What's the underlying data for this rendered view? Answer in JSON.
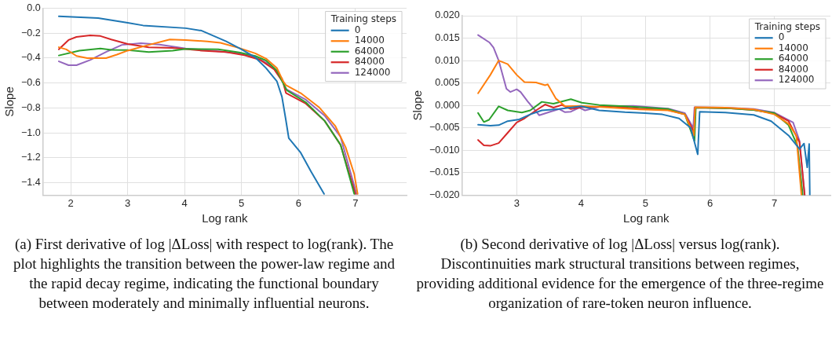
{
  "chart_data": [
    {
      "type": "line",
      "xlabel": "Log rank",
      "ylabel": "Slope",
      "legend_title": "Training steps",
      "legend": "top right",
      "grid": true,
      "xlim": [
        1.51,
        7.9
      ],
      "ylim": [
        -1.5,
        0
      ],
      "xticks": [
        2,
        3,
        4,
        5,
        6,
        7
      ],
      "yticks": [
        {
          "value": 0,
          "label": "0.0"
        },
        {
          "value": -0.2,
          "label": "−0.2"
        },
        {
          "value": -0.4,
          "label": "−0.4"
        },
        {
          "value": -0.6,
          "label": "−0.6"
        },
        {
          "value": -0.8,
          "label": "−0.8"
        },
        {
          "value": -1.0,
          "label": "−1.0"
        },
        {
          "value": -1.2,
          "label": "−1.2"
        },
        {
          "value": -1.4,
          "label": "−1.4"
        }
      ],
      "series": [
        {
          "name": "0",
          "color": "#1f77b4",
          "x": [
            1.79,
            2.48,
            3.0,
            3.27,
            4.02,
            4.3,
            4.73,
            5.0,
            5.24,
            5.43,
            5.62,
            5.71,
            5.78,
            5.83,
            6.04,
            6.22,
            6.45
          ],
          "values": [
            -0.064,
            -0.079,
            -0.117,
            -0.138,
            -0.16,
            -0.18,
            -0.266,
            -0.33,
            -0.394,
            -0.48,
            -0.585,
            -0.71,
            -0.9,
            -1.043,
            -1.16,
            -1.31,
            -1.49
          ]
        },
        {
          "name": "14000",
          "color": "#ff7f0e",
          "x": [
            1.79,
            1.92,
            2.1,
            2.29,
            2.62,
            2.81,
            3.0,
            3.37,
            3.74,
            4.02,
            4.4,
            4.63,
            4.96,
            5.24,
            5.43,
            5.62,
            5.73,
            5.78,
            6.04,
            6.37,
            6.65,
            6.83,
            6.98,
            7.04
          ],
          "values": [
            -0.313,
            -0.33,
            -0.383,
            -0.4,
            -0.4,
            -0.372,
            -0.34,
            -0.294,
            -0.251,
            -0.255,
            -0.266,
            -0.277,
            -0.319,
            -0.362,
            -0.404,
            -0.479,
            -0.585,
            -0.617,
            -0.681,
            -0.798,
            -0.947,
            -1.117,
            -1.33,
            -1.49
          ]
        },
        {
          "name": "64000",
          "color": "#2ca02c",
          "x": [
            1.79,
            2.15,
            2.52,
            2.71,
            3.0,
            3.37,
            3.79,
            4.02,
            4.59,
            4.96,
            5.24,
            5.43,
            5.62,
            5.76,
            5.8,
            6.13,
            6.46,
            6.74,
            6.98
          ],
          "values": [
            -0.379,
            -0.34,
            -0.323,
            -0.334,
            -0.336,
            -0.351,
            -0.34,
            -0.326,
            -0.33,
            -0.355,
            -0.383,
            -0.419,
            -0.5,
            -0.628,
            -0.66,
            -0.755,
            -0.904,
            -1.096,
            -1.49
          ]
        },
        {
          "name": "84000",
          "color": "#d62728",
          "x": [
            1.79,
            1.96,
            2.1,
            2.34,
            2.52,
            2.71,
            3.0,
            3.37,
            3.79,
            4.3,
            4.73,
            5.05,
            5.33,
            5.57,
            5.73,
            5.78,
            6.13,
            6.46,
            6.74,
            7.0
          ],
          "values": [
            -0.33,
            -0.255,
            -0.23,
            -0.217,
            -0.223,
            -0.251,
            -0.287,
            -0.313,
            -0.319,
            -0.34,
            -0.351,
            -0.377,
            -0.415,
            -0.489,
            -0.596,
            -0.68,
            -0.766,
            -0.904,
            -1.096,
            -1.49
          ]
        },
        {
          "name": "124000",
          "color": "#9467bd",
          "x": [
            1.79,
            1.96,
            2.1,
            2.34,
            2.62,
            2.9,
            3.23,
            3.56,
            4.02,
            4.59,
            4.96,
            5.24,
            5.52,
            5.71,
            5.78,
            6.13,
            6.46,
            6.74,
            7.02
          ],
          "values": [
            -0.426,
            -0.457,
            -0.457,
            -0.415,
            -0.351,
            -0.294,
            -0.281,
            -0.291,
            -0.323,
            -0.345,
            -0.362,
            -0.394,
            -0.457,
            -0.564,
            -0.649,
            -0.734,
            -0.862,
            -1.032,
            -1.49
          ]
        }
      ],
      "annotations": [
        "(a) First derivative of log |ΔLoss| with respect to log(rank). The plot highlights the transition between the power-law regime and the rapid decay regime, indicating the functional boundary between moderately and minimally influential neurons."
      ]
    },
    {
      "type": "line",
      "xlabel": "Log rank",
      "ylabel": "Slope",
      "legend_title": "Training steps",
      "legend": "top right",
      "grid": true,
      "xlim": [
        2.15,
        7.87
      ],
      "ylim": [
        -0.02,
        0.02
      ],
      "xticks": [
        3,
        4,
        5,
        6,
        7
      ],
      "yticks": [
        {
          "value": 0.02,
          "label": "0.020"
        },
        {
          "value": 0.015,
          "label": "0.015"
        },
        {
          "value": 0.01,
          "label": "0.010"
        },
        {
          "value": 0.005,
          "label": "0.005"
        },
        {
          "value": 0,
          "label": "0.000"
        },
        {
          "value": -0.005,
          "label": "−0.005"
        },
        {
          "value": -0.01,
          "label": "−0.010"
        },
        {
          "value": -0.015,
          "label": "−0.015"
        },
        {
          "value": -0.02,
          "label": "−0.020"
        }
      ],
      "series": [
        {
          "name": "0",
          "color": "#1f77b4",
          "x": [
            2.4,
            2.59,
            2.72,
            2.86,
            3.04,
            3.21,
            3.39,
            3.66,
            4.0,
            4.28,
            4.68,
            4.99,
            5.26,
            5.52,
            5.7,
            5.81,
            5.84,
            6.24,
            6.68,
            6.95,
            7.22,
            7.39,
            7.46,
            7.51,
            7.54,
            7.55
          ],
          "values": [
            -0.0043,
            -0.0045,
            -0.0044,
            -0.0035,
            -0.0031,
            -0.002,
            -0.0011,
            -0.0008,
            -0.0002,
            -0.0011,
            -0.0015,
            -0.0017,
            -0.002,
            -0.0029,
            -0.005,
            -0.0109,
            -0.0014,
            -0.0016,
            -0.0021,
            -0.0035,
            -0.0067,
            -0.0097,
            -0.0085,
            -0.0138,
            -0.0086,
            -0.02
          ]
        },
        {
          "name": "14000",
          "color": "#ff7f0e",
          "x": [
            2.4,
            2.59,
            2.72,
            2.86,
            3.0,
            3.12,
            3.3,
            3.44,
            3.48,
            3.61,
            3.75,
            4.0,
            4.46,
            4.9,
            5.35,
            5.61,
            5.75,
            5.77,
            6.24,
            6.68,
            7.0,
            7.22,
            7.34,
            7.42
          ],
          "values": [
            0.0027,
            0.0068,
            0.01,
            0.0092,
            0.0068,
            0.0052,
            0.0051,
            0.0045,
            0.0047,
            0.0015,
            -0.0002,
            -0.0001,
            -0.0005,
            -0.0009,
            -0.0011,
            -0.002,
            -0.0067,
            -0.0004,
            -0.0005,
            -0.0009,
            -0.002,
            -0.0041,
            -0.0067,
            -0.02
          ]
        },
        {
          "name": "64000",
          "color": "#2ca02c",
          "x": [
            2.4,
            2.49,
            2.57,
            2.72,
            2.86,
            3.08,
            3.21,
            3.39,
            3.57,
            3.84,
            4.01,
            4.28,
            4.68,
            5.35,
            5.61,
            5.76,
            5.78,
            6.24,
            6.68,
            7.0,
            7.22,
            7.36,
            7.44
          ],
          "values": [
            -0.0017,
            -0.0037,
            -0.0032,
            -0.0002,
            -0.0011,
            -0.0016,
            -0.0011,
            0.0008,
            0.0004,
            0.0014,
            0.0006,
            0.0001,
            -0.0002,
            -0.0008,
            -0.002,
            -0.0079,
            -0.0005,
            -0.0006,
            -0.001,
            -0.0017,
            -0.0044,
            -0.0091,
            -0.02
          ]
        },
        {
          "name": "84000",
          "color": "#d62728",
          "x": [
            2.4,
            2.49,
            2.59,
            2.72,
            2.86,
            3.0,
            3.12,
            3.3,
            3.44,
            3.57,
            3.7,
            3.84,
            4.01,
            4.46,
            4.9,
            5.35,
            5.61,
            5.76,
            5.77,
            6.24,
            6.68,
            7.0,
            7.22,
            7.39,
            7.47
          ],
          "values": [
            -0.0077,
            -0.0089,
            -0.009,
            -0.0084,
            -0.0061,
            -0.0038,
            -0.0029,
            -0.0011,
            0.0002,
            -0.0005,
            0.0001,
            -0.0008,
            -0.0004,
            -0.0002,
            -0.0007,
            -0.001,
            -0.002,
            -0.0061,
            -0.0005,
            -0.0006,
            -0.001,
            -0.0018,
            -0.0035,
            -0.0082,
            -0.02
          ]
        },
        {
          "name": "124000",
          "color": "#9467bd",
          "x": [
            2.4,
            2.58,
            2.64,
            2.72,
            2.84,
            2.9,
            3.0,
            3.06,
            3.17,
            3.35,
            3.52,
            3.66,
            3.75,
            3.84,
            3.97,
            4.06,
            4.32,
            4.81,
            5.35,
            5.61,
            5.74,
            5.76,
            6.24,
            6.68,
            7.0,
            7.29,
            7.39,
            7.47
          ],
          "values": [
            0.0157,
            0.014,
            0.0129,
            0.01,
            0.0037,
            0.003,
            0.0036,
            0.003,
            0.0009,
            -0.0022,
            -0.0014,
            -0.0008,
            -0.0015,
            -0.0014,
            -0.0005,
            -0.0011,
            -0.0002,
            -0.0001,
            -0.0007,
            -0.0017,
            -0.005,
            -0.0004,
            -0.0005,
            -0.0008,
            -0.0016,
            -0.0038,
            -0.0079,
            -0.02
          ]
        }
      ],
      "annotations": [
        "(b) Second derivative of log |ΔLoss| versus log(rank). Discontinuities mark structural transitions between regimes, providing additional evidence for the emergence of the three-regime organization of rare-token neuron influence."
      ]
    }
  ]
}
